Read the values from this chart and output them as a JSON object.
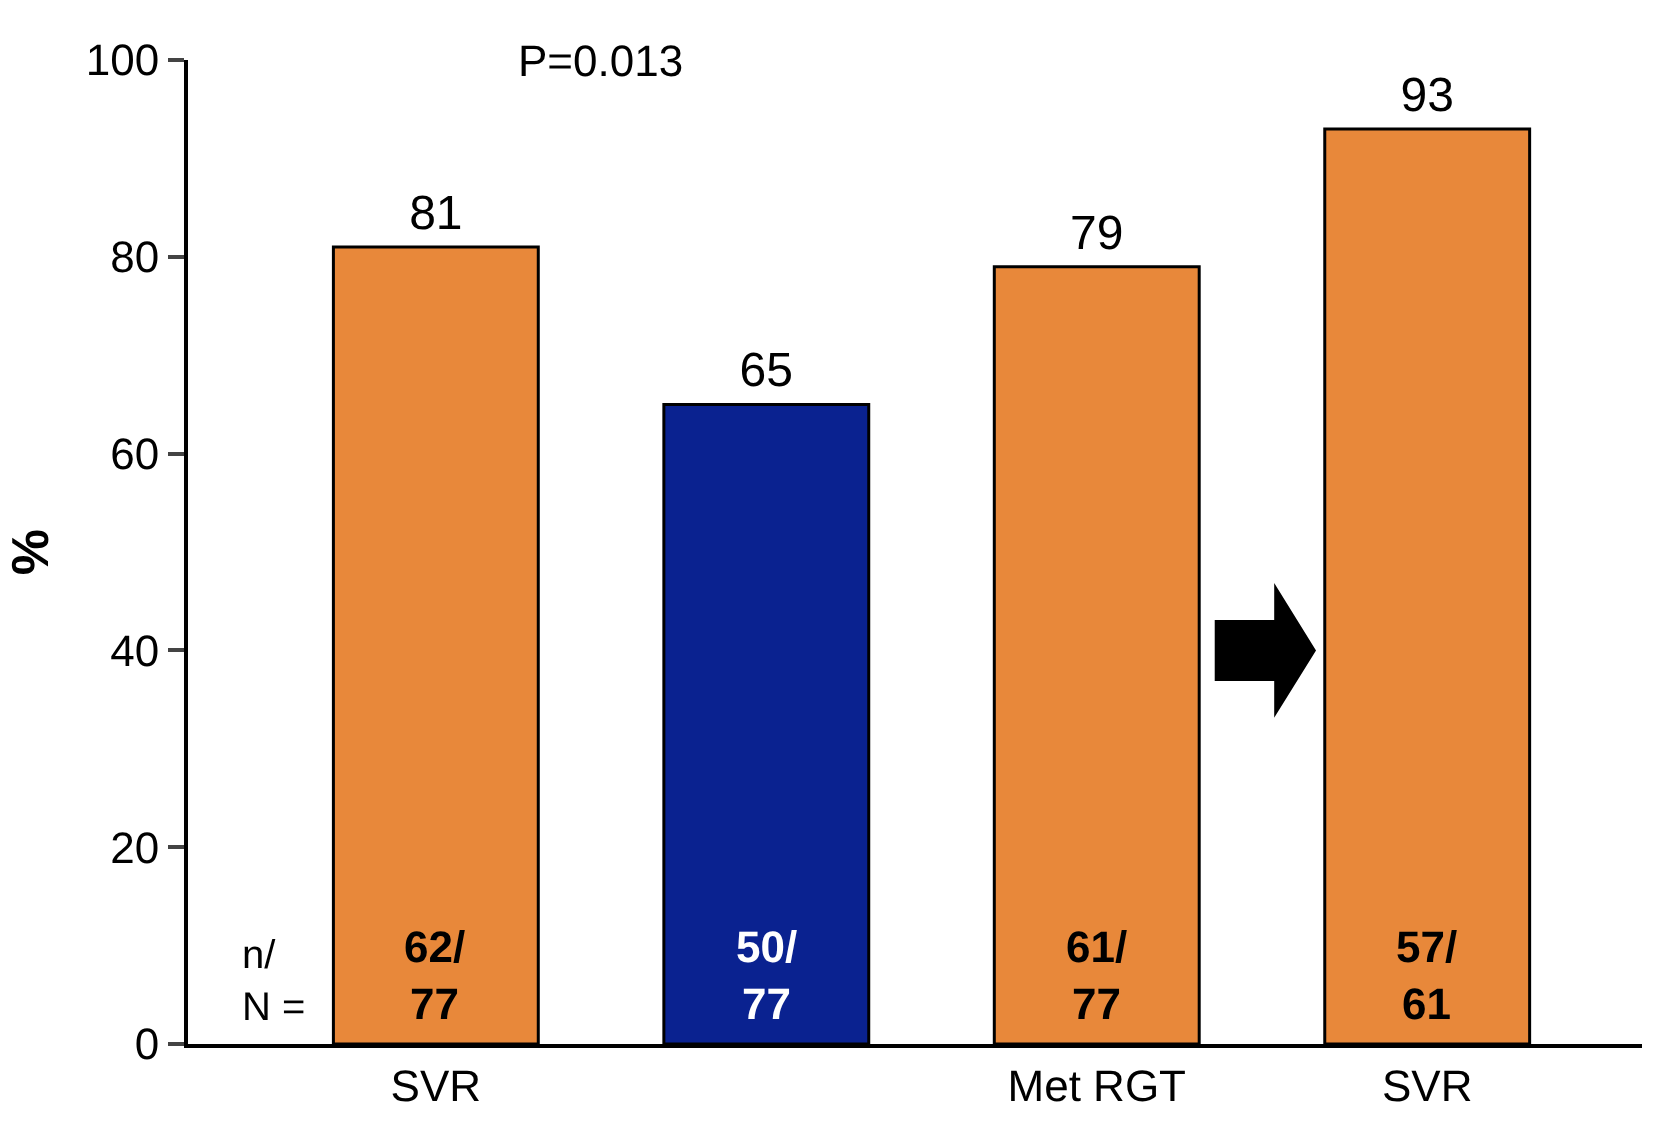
{
  "chart_data": {
    "type": "bar",
    "ylabel": "%",
    "categories": [
      "SVR",
      null,
      "Met RGT",
      "SVR"
    ],
    "values": [
      81,
      65,
      79,
      93
    ],
    "colors": [
      "#e8883a",
      "#0a2290",
      "#e8883a",
      "#e8883a"
    ],
    "ylim": [
      0,
      100
    ],
    "yticks": [
      0,
      20,
      40,
      60,
      80,
      100
    ],
    "data_labels": true,
    "annotations": [
      "P=0.013",
      "n/\nN =",
      "62/\n77",
      "50/\n77",
      "61/\n77",
      "57/\n61"
    ]
  }
}
